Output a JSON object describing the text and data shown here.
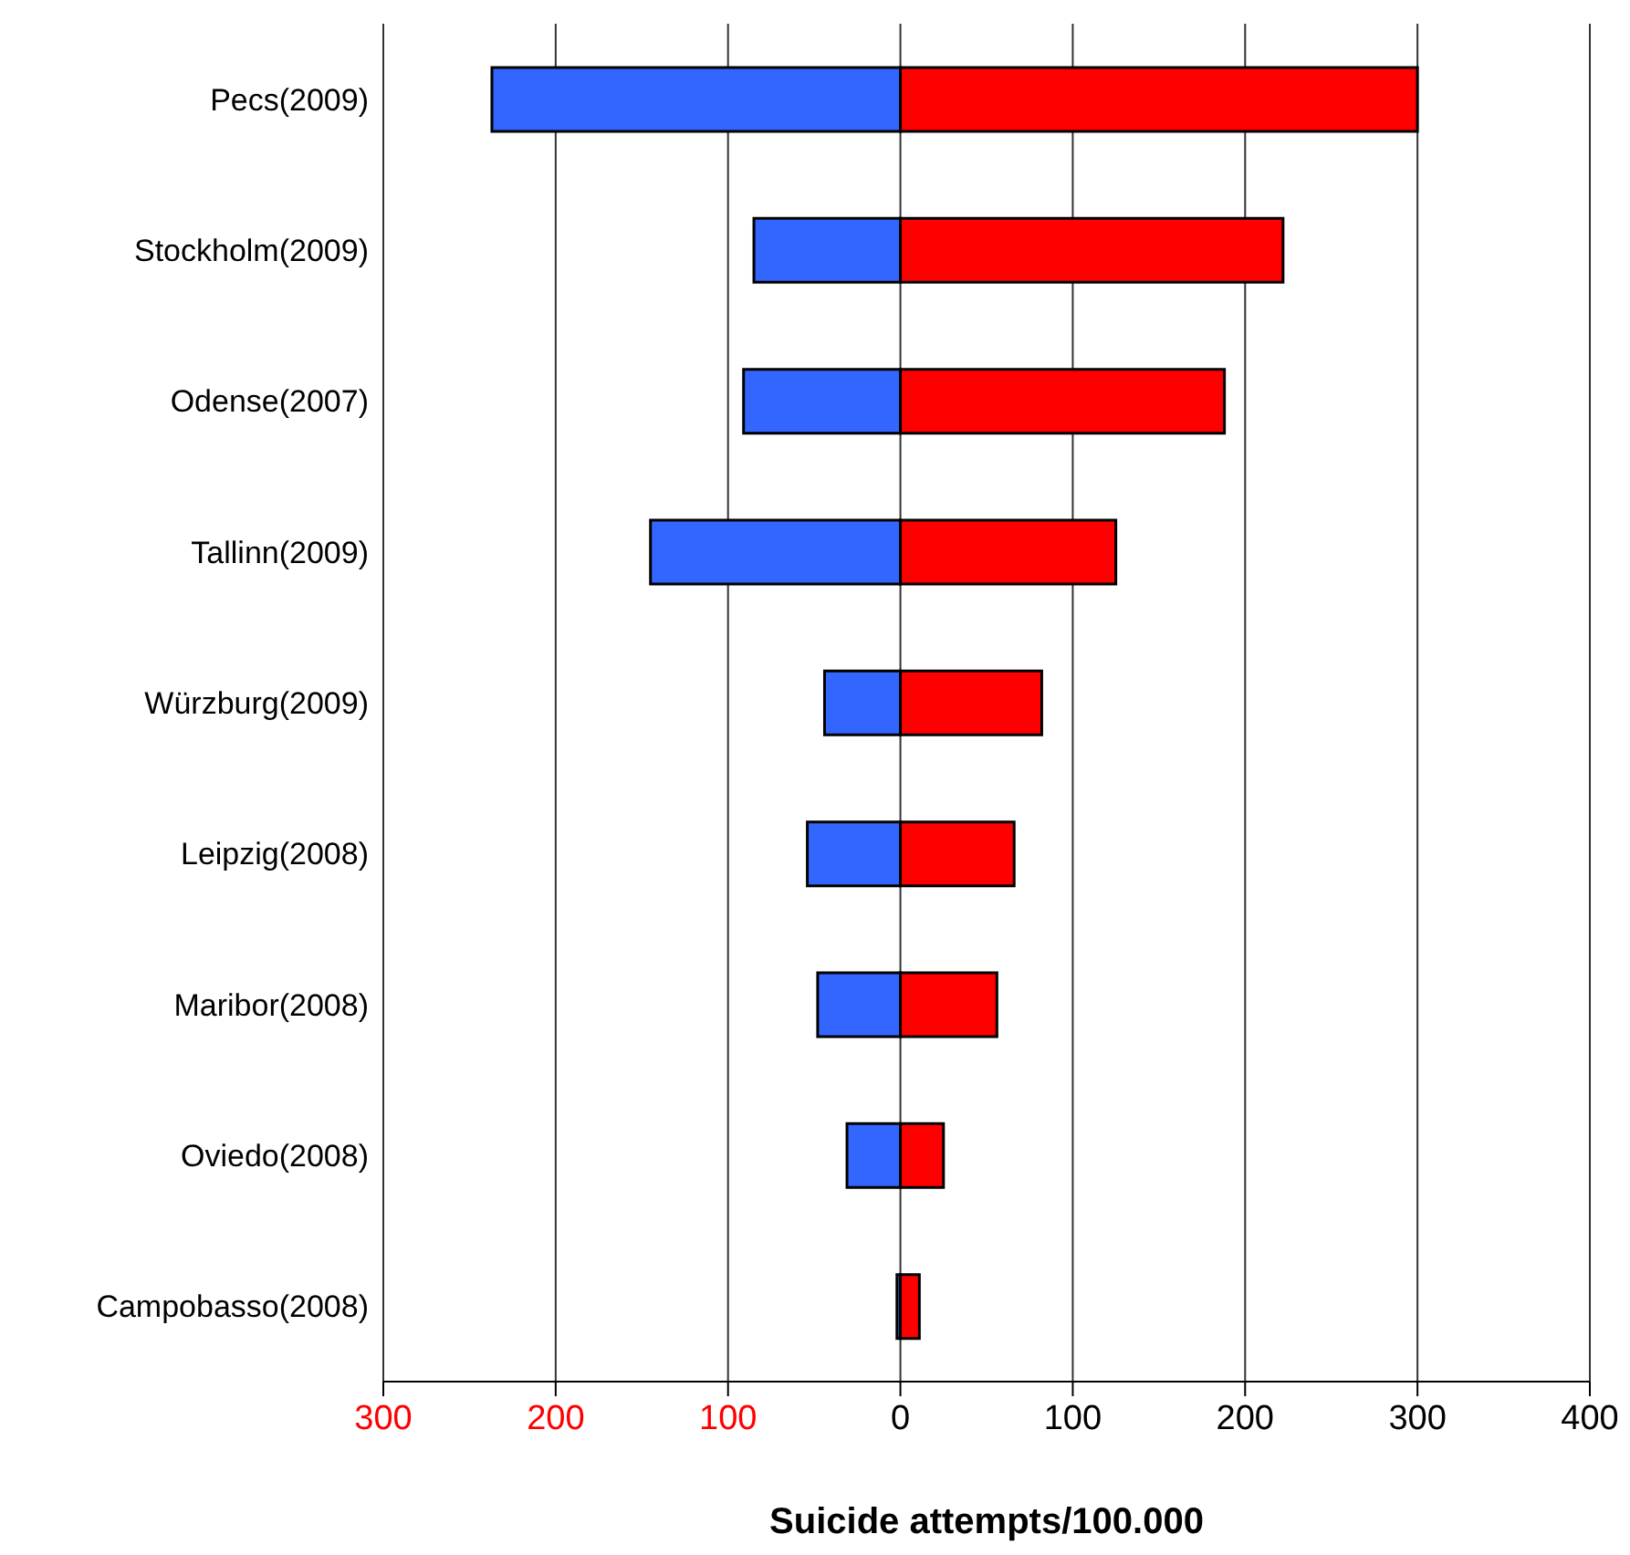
{
  "chart_data": {
    "type": "bar",
    "orientation": "horizontal",
    "stacked": true,
    "xlabel": "Suicide attempts/100.000",
    "categories": [
      "Pecs(2009)",
      "Stockholm(2009)",
      "Odense(2007)",
      "Tallinn(2009)",
      "Würzburg(2009)",
      "Leipzig(2008)",
      "Maribor(2008)",
      "Oviedo(2008)",
      "Campobasso(2008)"
    ],
    "series": [
      {
        "color": "#3366ff",
        "values": [
          -237,
          -85,
          -91,
          -145,
          -44,
          -54,
          -48,
          -31,
          -2
        ]
      },
      {
        "color": "#ff0000",
        "values": [
          300,
          222,
          188,
          125,
          82,
          66,
          56,
          25,
          11
        ]
      }
    ],
    "xlim": [
      -300,
      400
    ],
    "xticks": [
      {
        "value": -300,
        "label": "300"
      },
      {
        "value": -200,
        "label": "200"
      },
      {
        "value": -100,
        "label": "100"
      },
      0,
      100,
      200,
      300,
      400
    ],
    "grid": "x",
    "legend": false
  }
}
